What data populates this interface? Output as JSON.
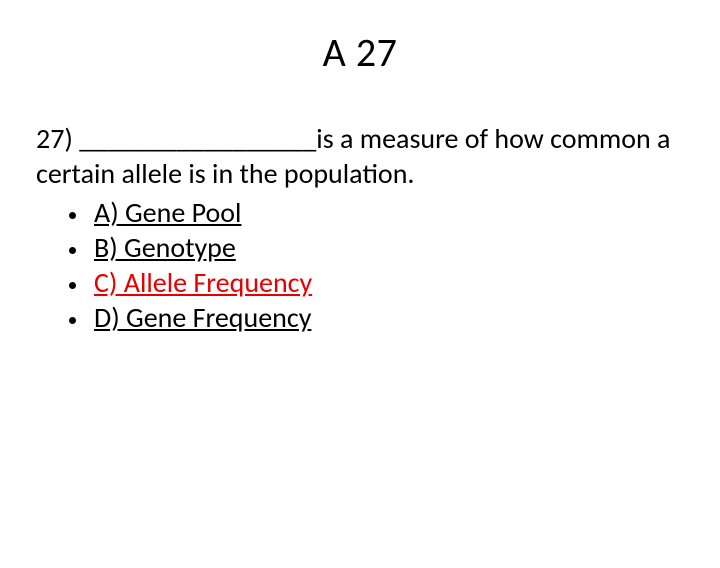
{
  "title": "A 27",
  "question": {
    "number": "27)",
    "blank": "_________________",
    "text_after_blank": "is a measure of how common a certain allele is in the population."
  },
  "options": [
    {
      "label": "A) Gene Pool",
      "correct": false
    },
    {
      "label": "B) Genotype",
      "correct": false
    },
    {
      "label": "C) Allele Frequency",
      "correct": true
    },
    {
      "label": "D) Gene Frequency",
      "correct": false
    }
  ],
  "colors": {
    "text": "#000000",
    "correct": "#e60000",
    "background": "#ffffff"
  },
  "font": {
    "family": "Calibri",
    "title_size": 40,
    "body_size": 28
  }
}
